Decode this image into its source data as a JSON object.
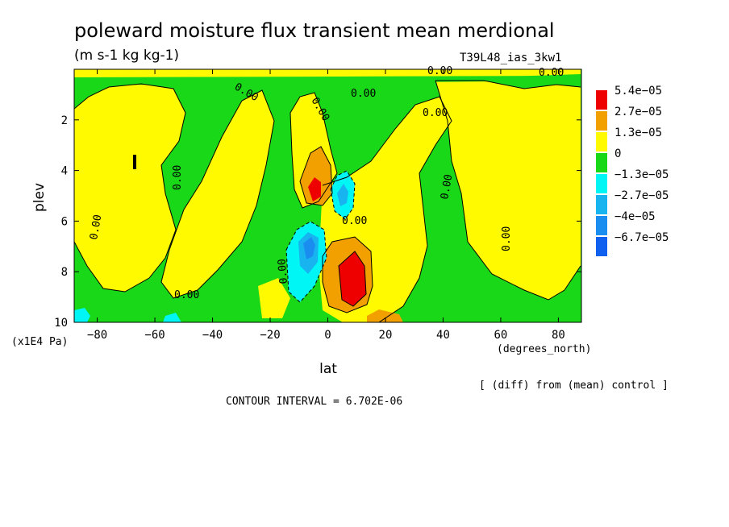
{
  "chart_data": {
    "type": "heatmap",
    "title": "poleward moisture flux transient mean merdional",
    "subtitle": "(m s-1 kg kg-1)",
    "run_label": "T39L48_ias_3kw1",
    "xlabel": "lat",
    "x_units": "(degrees_north)",
    "ylabel": "plev",
    "y_units": "(x1E4 Pa)",
    "xlim": [
      -88,
      88
    ],
    "ylim": [
      10,
      0
    ],
    "x_ticks": [
      -80,
      -60,
      -40,
      -20,
      0,
      20,
      40,
      60,
      80
    ],
    "x_tick_labels": [
      "−80",
      "−60",
      "−40",
      "−20",
      "0",
      "20",
      "40",
      "60",
      "80"
    ],
    "y_ticks": [
      2,
      4,
      6,
      8,
      10
    ],
    "y_tick_labels": [
      "2",
      "4",
      "6",
      "8",
      "10"
    ],
    "footer_note": "[ (diff) from (mean) control ]",
    "contour_interval": "CONTOUR INTERVAL = 6.702E-06",
    "contour_label": "0.00",
    "legend": [
      {
        "label": "5.4e−05",
        "color": "#ee0000"
      },
      {
        "label": "2.7e−05",
        "color": "#f2a000"
      },
      {
        "label": "1.3e−05",
        "color": "#fffa00"
      },
      {
        "label": "0",
        "color": "#18d818"
      },
      {
        "label": "−1.3e−05",
        "color": "#00f5f5"
      },
      {
        "label": "−2.7e−05",
        "color": "#18b4f0"
      },
      {
        "label": "−4e−05",
        "color": "#1a8ef0"
      },
      {
        "label": "−6.7e−05",
        "color": "#1060f0"
      }
    ],
    "features": [
      {
        "lat": 8,
        "plev": 8.2,
        "value": 6e-05
      },
      {
        "lat": -5,
        "plev": 4.8,
        "value": 5.4e-05
      },
      {
        "lat": -8,
        "plev": 7.0,
        "value": -4e-05
      },
      {
        "lat": 5,
        "plev": 5.0,
        "value": -2.7e-05
      }
    ]
  }
}
